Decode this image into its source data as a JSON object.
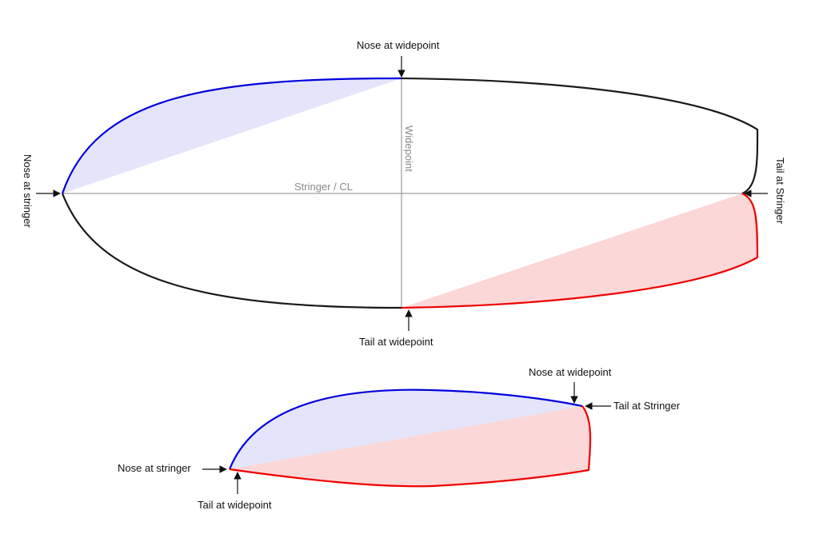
{
  "colors": {
    "nose_outline": "#0000dd",
    "nose_fill": "#e4e4fb",
    "tail_outline": "#ee0000",
    "tail_fill": "#fcd7d7",
    "outline": "#1a1a1a",
    "guide": "#8a8a8a"
  },
  "top_diagram": {
    "nose_at_widepoint": "Nose at widepoint",
    "tail_at_widepoint": "Tail at widepoint",
    "nose_at_stringer": "Nose at stringer",
    "tail_at_stringer": "Tail at Stringer",
    "stringer_label": "Stringer / CL",
    "widepoint_label": "Widepoint"
  },
  "bottom_diagram": {
    "nose_at_widepoint": "Nose at widepoint",
    "tail_at_stringer": "Tail at Stringer",
    "nose_at_stringer": "Nose at stringer",
    "tail_at_widepoint": "Tail at widepoint"
  }
}
